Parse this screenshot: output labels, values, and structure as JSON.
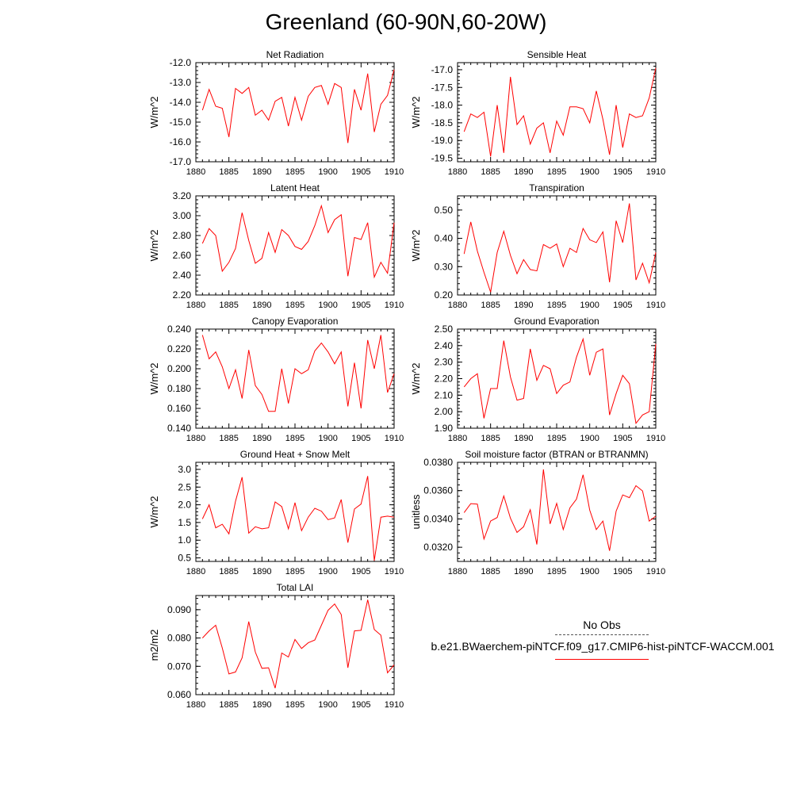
{
  "title": "Greenland (60-90N,60-20W)",
  "line_color": "#ff0000",
  "legend": {
    "obs_label": "No Obs",
    "obs_color": "#555555",
    "model_label": "b.e21.BWaerchem-piNTCF.f09_g17.CMIP6-hist-piNTCF-WACCM.001",
    "model_color": "#ff0000"
  },
  "chart_data": [
    {
      "type": "line",
      "title": "Net Radiation",
      "xlabel": "",
      "ylabel": "W/m^2",
      "xlim": [
        1880,
        1910
      ],
      "ylim": [
        -17.0,
        -12.0
      ],
      "xticks": [
        "1880",
        "1885",
        "1890",
        "1895",
        "1900",
        "1905",
        "1910"
      ],
      "yticks": [
        "-17.0",
        "-16.0",
        "-15.0",
        "-14.0",
        "-13.0",
        "-12.0"
      ],
      "x": [
        1881,
        1882,
        1883,
        1884,
        1885,
        1886,
        1887,
        1888,
        1889,
        1890,
        1891,
        1892,
        1893,
        1894,
        1895,
        1896,
        1897,
        1898,
        1899,
        1900,
        1901,
        1902,
        1903,
        1904,
        1905,
        1906,
        1907,
        1908,
        1909,
        1910
      ],
      "series": [
        {
          "values": [
            -14.4,
            -13.35,
            -14.2,
            -14.3,
            -15.75,
            -13.3,
            -13.55,
            -13.25,
            -14.65,
            -14.4,
            -14.9,
            -13.95,
            -13.75,
            -15.2,
            -13.75,
            -14.9,
            -13.7,
            -13.25,
            -13.15,
            -14.1,
            -13.05,
            -13.25,
            -16.05,
            -13.35,
            -14.4,
            -12.55,
            -15.5,
            -14.1,
            -13.65,
            -12.35
          ]
        }
      ]
    },
    {
      "type": "line",
      "title": "Sensible Heat",
      "xlabel": "",
      "ylabel": "W/m^2",
      "xlim": [
        1880,
        1910
      ],
      "ylim": [
        -19.6,
        -16.8
      ],
      "xticks": [
        "1880",
        "1885",
        "1890",
        "1895",
        "1900",
        "1905",
        "1910"
      ],
      "yticks": [
        "-19.5",
        "-19.0",
        "-18.5",
        "-18.0",
        "-17.5",
        "-17.0"
      ],
      "x": [
        1881,
        1882,
        1883,
        1884,
        1885,
        1886,
        1887,
        1888,
        1889,
        1890,
        1891,
        1892,
        1893,
        1894,
        1895,
        1896,
        1897,
        1898,
        1899,
        1900,
        1901,
        1902,
        1903,
        1904,
        1905,
        1906,
        1907,
        1908,
        1909,
        1910
      ],
      "series": [
        {
          "values": [
            -18.75,
            -18.25,
            -18.35,
            -18.2,
            -19.45,
            -18.0,
            -19.35,
            -17.2,
            -18.55,
            -18.3,
            -19.1,
            -18.65,
            -18.5,
            -19.35,
            -18.45,
            -18.85,
            -18.05,
            -18.05,
            -18.1,
            -18.5,
            -17.6,
            -18.4,
            -19.4,
            -18.0,
            -19.2,
            -18.25,
            -18.35,
            -18.3,
            -17.8,
            -16.95
          ]
        }
      ]
    },
    {
      "type": "line",
      "title": "Latent Heat",
      "xlabel": "",
      "ylabel": "W/m^2",
      "xlim": [
        1880,
        1910
      ],
      "ylim": [
        2.2,
        3.2
      ],
      "xticks": [
        "1880",
        "1885",
        "1890",
        "1895",
        "1900",
        "1905",
        "1910"
      ],
      "yticks": [
        "2.20",
        "2.40",
        "2.60",
        "2.80",
        "3.00",
        "3.20"
      ],
      "x": [
        1881,
        1882,
        1883,
        1884,
        1885,
        1886,
        1887,
        1888,
        1889,
        1890,
        1891,
        1892,
        1893,
        1894,
        1895,
        1896,
        1897,
        1898,
        1899,
        1900,
        1901,
        1902,
        1903,
        1904,
        1905,
        1906,
        1907,
        1908,
        1909,
        1910
      ],
      "series": [
        {
          "values": [
            2.72,
            2.87,
            2.8,
            2.44,
            2.53,
            2.67,
            3.03,
            2.75,
            2.52,
            2.57,
            2.83,
            2.63,
            2.86,
            2.8,
            2.69,
            2.66,
            2.74,
            2.9,
            3.1,
            2.83,
            2.96,
            3.01,
            2.39,
            2.78,
            2.76,
            2.93,
            2.38,
            2.53,
            2.42,
            2.93
          ]
        }
      ]
    },
    {
      "type": "line",
      "title": "Transpiration",
      "xlabel": "",
      "ylabel": "W/m^2",
      "xlim": [
        1880,
        1910
      ],
      "ylim": [
        0.2,
        0.55
      ],
      "xticks": [
        "1880",
        "1885",
        "1890",
        "1895",
        "1900",
        "1905",
        "1910"
      ],
      "yticks": [
        "0.20",
        "0.30",
        "0.40",
        "0.50"
      ],
      "x": [
        1881,
        1882,
        1883,
        1884,
        1885,
        1886,
        1887,
        1888,
        1889,
        1890,
        1891,
        1892,
        1893,
        1894,
        1895,
        1896,
        1897,
        1898,
        1899,
        1900,
        1901,
        1902,
        1903,
        1904,
        1905,
        1906,
        1907,
        1908,
        1909,
        1910
      ],
      "series": [
        {
          "values": [
            0.345,
            0.458,
            0.355,
            0.28,
            0.21,
            0.35,
            0.425,
            0.34,
            0.275,
            0.325,
            0.29,
            0.285,
            0.378,
            0.365,
            0.38,
            0.3,
            0.365,
            0.35,
            0.435,
            0.395,
            0.385,
            0.423,
            0.245,
            0.462,
            0.385,
            0.523,
            0.253,
            0.312,
            0.243,
            0.35
          ]
        }
      ]
    },
    {
      "type": "line",
      "title": "Canopy Evaporation",
      "xlabel": "",
      "ylabel": "W/m^2",
      "xlim": [
        1880,
        1910
      ],
      "ylim": [
        0.14,
        0.24
      ],
      "xticks": [
        "1880",
        "1885",
        "1890",
        "1895",
        "1900",
        "1905",
        "1910"
      ],
      "yticks": [
        "0.140",
        "0.160",
        "0.180",
        "0.200",
        "0.220",
        "0.240"
      ],
      "x": [
        1881,
        1882,
        1883,
        1884,
        1885,
        1886,
        1887,
        1888,
        1889,
        1890,
        1891,
        1892,
        1893,
        1894,
        1895,
        1896,
        1897,
        1898,
        1899,
        1900,
        1901,
        1902,
        1903,
        1904,
        1905,
        1906,
        1907,
        1908,
        1909,
        1910
      ],
      "series": [
        {
          "values": [
            0.234,
            0.21,
            0.217,
            0.202,
            0.18,
            0.199,
            0.17,
            0.219,
            0.183,
            0.174,
            0.157,
            0.157,
            0.2,
            0.165,
            0.2,
            0.195,
            0.199,
            0.218,
            0.226,
            0.217,
            0.205,
            0.217,
            0.162,
            0.206,
            0.16,
            0.229,
            0.2,
            0.234,
            0.176,
            0.195
          ]
        }
      ]
    },
    {
      "type": "line",
      "title": "Ground Evaporation",
      "xlabel": "",
      "ylabel": "W/m^2",
      "xlim": [
        1880,
        1910
      ],
      "ylim": [
        1.9,
        2.5
      ],
      "xticks": [
        "1880",
        "1885",
        "1890",
        "1895",
        "1900",
        "1905",
        "1910"
      ],
      "yticks": [
        "1.90",
        "2.00",
        "2.10",
        "2.20",
        "2.30",
        "2.40",
        "2.50"
      ],
      "x": [
        1881,
        1882,
        1883,
        1884,
        1885,
        1886,
        1887,
        1888,
        1889,
        1890,
        1891,
        1892,
        1893,
        1894,
        1895,
        1896,
        1897,
        1898,
        1899,
        1900,
        1901,
        1902,
        1903,
        1904,
        1905,
        1906,
        1907,
        1908,
        1909,
        1910
      ],
      "series": [
        {
          "values": [
            2.15,
            2.2,
            2.23,
            1.96,
            2.14,
            2.14,
            2.43,
            2.21,
            2.07,
            2.08,
            2.38,
            2.19,
            2.28,
            2.26,
            2.11,
            2.16,
            2.18,
            2.33,
            2.44,
            2.22,
            2.36,
            2.38,
            1.98,
            2.11,
            2.22,
            2.17,
            1.93,
            1.98,
            2.0,
            2.41
          ]
        }
      ]
    },
    {
      "type": "line",
      "title": "Ground Heat + Snow Melt",
      "xlabel": "",
      "ylabel": "W/m^2",
      "xlim": [
        1880,
        1910
      ],
      "ylim": [
        0.4,
        3.2
      ],
      "xticks": [
        "1880",
        "1885",
        "1890",
        "1895",
        "1900",
        "1905",
        "1910"
      ],
      "yticks": [
        "0.5",
        "1.0",
        "1.5",
        "2.0",
        "2.5",
        "3.0"
      ],
      "x": [
        1881,
        1882,
        1883,
        1884,
        1885,
        1886,
        1887,
        1888,
        1889,
        1890,
        1891,
        1892,
        1893,
        1894,
        1895,
        1896,
        1897,
        1898,
        1899,
        1900,
        1901,
        1902,
        1903,
        1904,
        1905,
        1906,
        1907,
        1908,
        1909,
        1910
      ],
      "series": [
        {
          "values": [
            1.6,
            2.0,
            1.35,
            1.45,
            1.18,
            2.1,
            2.78,
            1.2,
            1.38,
            1.32,
            1.35,
            2.08,
            1.95,
            1.32,
            2.06,
            1.27,
            1.65,
            1.9,
            1.82,
            1.58,
            1.63,
            2.15,
            0.93,
            1.88,
            2.02,
            2.81,
            0.42,
            1.65,
            1.68,
            1.65
          ]
        }
      ]
    },
    {
      "type": "line",
      "title": "Soil moisture factor (BTRAN or BTRANMN)",
      "xlabel": "",
      "ylabel": "unitless",
      "xlim": [
        1880,
        1910
      ],
      "ylim": [
        0.031,
        0.038
      ],
      "xticks": [
        "1880",
        "1885",
        "1890",
        "1895",
        "1900",
        "1905",
        "1910"
      ],
      "yticks": [
        "0.0320",
        "0.0340",
        "0.0360",
        "0.0380"
      ],
      "x": [
        1881,
        1882,
        1883,
        1884,
        1885,
        1886,
        1887,
        1888,
        1889,
        1890,
        1891,
        1892,
        1893,
        1894,
        1895,
        1896,
        1897,
        1898,
        1899,
        1900,
        1901,
        1902,
        1903,
        1904,
        1905,
        1906,
        1907,
        1908,
        1909,
        1910
      ],
      "series": [
        {
          "values": [
            0.03445,
            0.03508,
            0.03505,
            0.03258,
            0.03385,
            0.0341,
            0.03562,
            0.03405,
            0.03305,
            0.03345,
            0.03465,
            0.0322,
            0.0375,
            0.03365,
            0.0351,
            0.03325,
            0.03478,
            0.0354,
            0.03712,
            0.03462,
            0.03325,
            0.03385,
            0.03175,
            0.03455,
            0.0357,
            0.0355,
            0.03635,
            0.03598,
            0.03385,
            0.0342
          ]
        }
      ]
    },
    {
      "type": "line",
      "title": "Total LAI",
      "xlabel": "",
      "ylabel": "m2/m2",
      "xlim": [
        1880,
        1910
      ],
      "ylim": [
        0.06,
        0.095
      ],
      "xticks": [
        "1880",
        "1885",
        "1890",
        "1895",
        "1900",
        "1905",
        "1910"
      ],
      "yticks": [
        "0.060",
        "0.070",
        "0.080",
        "0.090"
      ],
      "x": [
        1881,
        1882,
        1883,
        1884,
        1885,
        1886,
        1887,
        1888,
        1889,
        1890,
        1891,
        1892,
        1893,
        1894,
        1895,
        1896,
        1897,
        1898,
        1899,
        1900,
        1901,
        1902,
        1903,
        1904,
        1905,
        1906,
        1907,
        1908,
        1909,
        1910
      ],
      "series": [
        {
          "values": [
            0.08,
            0.0825,
            0.0845,
            0.0765,
            0.0673,
            0.068,
            0.073,
            0.0858,
            0.075,
            0.0693,
            0.0695,
            0.0623,
            0.0747,
            0.0733,
            0.0795,
            0.0763,
            0.0783,
            0.0793,
            0.0845,
            0.0898,
            0.092,
            0.0883,
            0.0695,
            0.0825,
            0.0827,
            0.0935,
            0.083,
            0.081,
            0.0677,
            0.0705
          ]
        }
      ]
    }
  ]
}
